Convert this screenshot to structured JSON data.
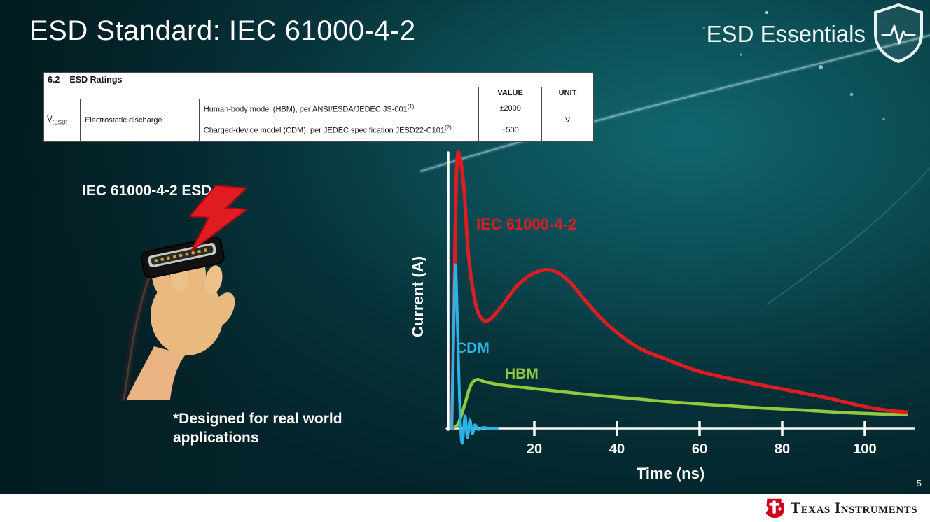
{
  "slide": {
    "title": "ESD Standard: IEC 61000-4-2",
    "series_brand": "ESD Essentials",
    "page_number": "5",
    "footer_logo_text": "Texas Instruments"
  },
  "ratings_table": {
    "section_num": "6.2",
    "section_title": "ESD Ratings",
    "col_value": "VALUE",
    "col_unit": "UNIT",
    "row_symbol": "V",
    "row_symbol_sub": "(ESD)",
    "row_param": "Electrostatic discharge",
    "rows": [
      {
        "desc": "Human-body model (HBM), per ANSI/ESDA/JEDEC JS-001",
        "desc_sup": "(1)",
        "value": "±2000"
      },
      {
        "desc": "Charged-device model (CDM), per JEDEC specification JESD22-C101",
        "desc_sup": "(2)",
        "value": "±500"
      }
    ],
    "unit": "V"
  },
  "illustration": {
    "caption": "IEC 61000-4-2 ESD",
    "note": "*Designed for real world applications"
  },
  "chart_data": {
    "type": "line",
    "xlabel": "Time (ns)",
    "ylabel": "Current (A)",
    "x_ticks": [
      20,
      40,
      60,
      80,
      100
    ],
    "xlim": [
      0,
      112
    ],
    "ylim": [
      -1,
      10.5
    ],
    "grid": false,
    "legend_position": "inline-labels",
    "series": [
      {
        "name": "HBM",
        "color": "#92c83e",
        "width": 4.5,
        "points": [
          [
            0,
            0
          ],
          [
            1.5,
            0.15
          ],
          [
            3,
            0.8
          ],
          [
            4.5,
            1.55
          ],
          [
            6,
            1.8
          ],
          [
            8,
            1.72
          ],
          [
            12,
            1.6
          ],
          [
            18,
            1.5
          ],
          [
            25,
            1.38
          ],
          [
            35,
            1.22
          ],
          [
            45,
            1.08
          ],
          [
            55,
            0.95
          ],
          [
            65,
            0.85
          ],
          [
            75,
            0.75
          ],
          [
            85,
            0.67
          ],
          [
            95,
            0.58
          ],
          [
            105,
            0.52
          ],
          [
            110,
            0.5
          ]
        ]
      },
      {
        "name": "IEC 61000-4-2",
        "color": "#e01b22",
        "width": 5,
        "points": [
          [
            0,
            0
          ],
          [
            0.5,
            4
          ],
          [
            1.2,
            9.6
          ],
          [
            2,
            10
          ],
          [
            3,
            8.8
          ],
          [
            4,
            6.5
          ],
          [
            5.5,
            4.8
          ],
          [
            7,
            4.1
          ],
          [
            9,
            4.0
          ],
          [
            12,
            4.5
          ],
          [
            16,
            5.3
          ],
          [
            20,
            5.75
          ],
          [
            24,
            5.85
          ],
          [
            28,
            5.5
          ],
          [
            33,
            4.6
          ],
          [
            38,
            3.8
          ],
          [
            45,
            3.0
          ],
          [
            52,
            2.55
          ],
          [
            60,
            2.1
          ],
          [
            70,
            1.75
          ],
          [
            80,
            1.45
          ],
          [
            90,
            1.15
          ],
          [
            100,
            0.8
          ],
          [
            106,
            0.65
          ],
          [
            110,
            0.6
          ]
        ]
      },
      {
        "name": "CDM",
        "color": "#2bb3e6",
        "width": 4,
        "points": [
          [
            0,
            0
          ],
          [
            0.4,
            3
          ],
          [
            0.9,
            6.05
          ],
          [
            1.5,
            3.2
          ],
          [
            2.1,
            0.2
          ],
          [
            2.6,
            -0.55
          ],
          [
            3.2,
            0.45
          ],
          [
            3.8,
            -0.35
          ],
          [
            4.4,
            0.3
          ],
          [
            5.0,
            -0.2
          ],
          [
            5.6,
            0.12
          ],
          [
            6.4,
            -0.05
          ],
          [
            7.5,
            0.02
          ],
          [
            9,
            0
          ],
          [
            11,
            0
          ]
        ]
      }
    ]
  }
}
